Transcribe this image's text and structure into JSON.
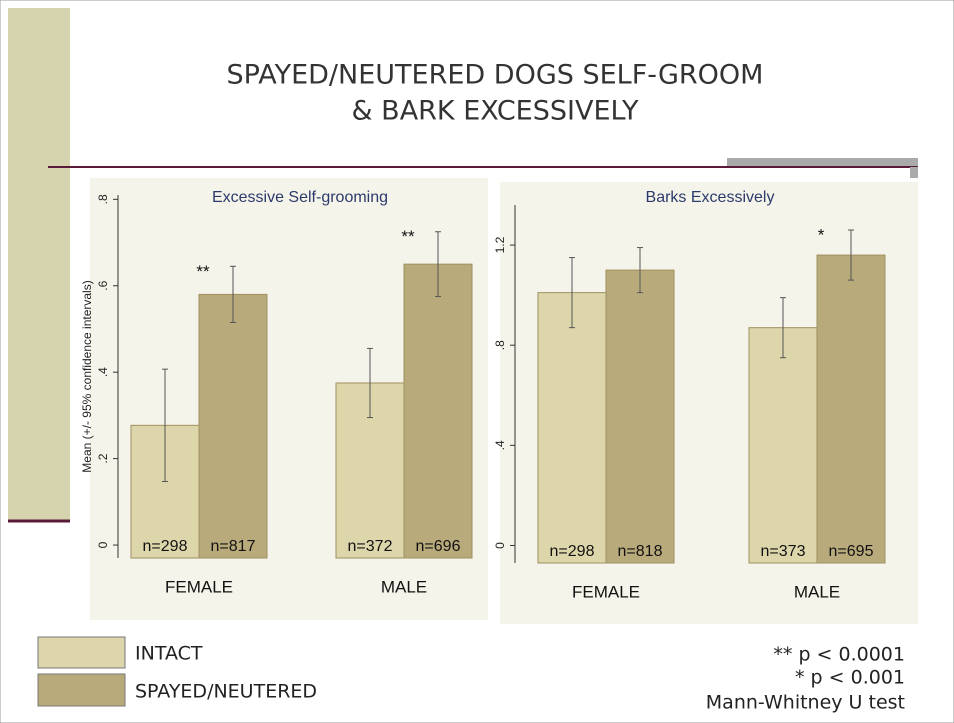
{
  "title_lines": [
    "SPAYED/NEUTERED DOGS SELF-GROOM",
    "& BARK EXCESSIVELY"
  ],
  "chart_data": [
    {
      "type": "bar",
      "title": "Excessive Self-grooming",
      "y_label": "Mean (+/- 95% confidence intervals)",
      "categories": [
        "FEMALE",
        "MALE"
      ],
      "series": [
        {
          "name": "INTACT",
          "color": "#ddd6ab",
          "values": [
            0.277,
            0.375
          ],
          "errors": [
            0.13,
            0.08
          ],
          "n_labels": [
            "n=298",
            "n=372"
          ]
        },
        {
          "name": "SPAYED/NEUTERED",
          "color": "#b9aa7b",
          "values": [
            0.58,
            0.65
          ],
          "errors": [
            0.065,
            0.075
          ],
          "n_labels": [
            "n=817",
            "n=696"
          ],
          "stars": [
            "**",
            "**"
          ]
        }
      ],
      "ylim": [
        -0.03,
        0.81
      ],
      "yticks": [
        0,
        {
          "value": 0.2,
          "label": ".2"
        },
        {
          "value": 0.4,
          "label": ".4"
        },
        {
          "value": 0.6,
          "label": ".6"
        },
        {
          "value": 0.8,
          "label": ".8"
        }
      ]
    },
    {
      "type": "bar",
      "title": "Barks Excessively",
      "categories": [
        "FEMALE",
        "MALE"
      ],
      "series": [
        {
          "color": "#ddd6ab",
          "values": [
            1.01,
            0.87
          ],
          "errors": [
            0.14,
            0.12
          ],
          "n_labels": [
            "n=298",
            "n=373"
          ]
        },
        {
          "color": "#b9aa7b",
          "values": [
            1.1,
            1.16
          ],
          "errors": [
            0.09,
            0.1
          ],
          "n_labels": [
            "n=818",
            "n=695"
          ],
          "stars": [
            null,
            "*"
          ]
        }
      ],
      "ylim": [
        -0.07,
        1.36
      ],
      "yticks": [
        0,
        {
          "value": 0.4,
          "label": ".4"
        },
        {
          "value": 0.8,
          "label": ".8"
        },
        1.2
      ]
    }
  ],
  "footnotes": [
    "** p < 0.0001",
    "* p < 0.001",
    "Mann-Whitney U test"
  ]
}
